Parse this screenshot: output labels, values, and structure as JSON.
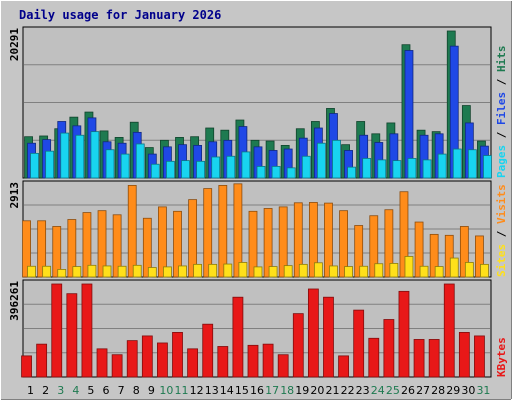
{
  "chart_data": [
    {
      "type": "bar",
      "title": "Daily usage for January 2026",
      "categories": [
        "1",
        "2",
        "3",
        "4",
        "5",
        "6",
        "7",
        "8",
        "9",
        "10",
        "11",
        "12",
        "13",
        "14",
        "15",
        "16",
        "17",
        "18",
        "19",
        "20",
        "21",
        "22",
        "23",
        "24",
        "25",
        "26",
        "27",
        "28",
        "29",
        "30",
        "31"
      ],
      "weekend_days": [
        "3",
        "4",
        "10",
        "11",
        "17",
        "18",
        "24",
        "25",
        "31"
      ],
      "y_max_label": "20291",
      "ylim": [
        0,
        20291
      ],
      "side_label": [
        "Pages",
        "Files",
        "Hits"
      ],
      "series": [
        {
          "name": "Hits",
          "color": "#1e7a50",
          "values": [
            5700,
            5800,
            6800,
            8400,
            9100,
            6500,
            5600,
            7700,
            4200,
            5200,
            5600,
            5700,
            6900,
            6600,
            8000,
            5200,
            5100,
            4500,
            6800,
            7800,
            9600,
            4600,
            7800,
            6100,
            7600,
            18400,
            6600,
            6400,
            20291,
            10000,
            5100
          ]
        },
        {
          "name": "Files",
          "color": "#1f48e6",
          "values": [
            4800,
            5300,
            7800,
            7200,
            8300,
            5000,
            4800,
            6300,
            3300,
            4300,
            4600,
            4500,
            5000,
            5200,
            7100,
            4300,
            3800,
            4000,
            5500,
            6900,
            8900,
            3800,
            5900,
            4900,
            6100,
            17600,
            5900,
            6100,
            18200,
            7600,
            4400
          ]
        },
        {
          "name": "Pages",
          "color": "#18d4f0",
          "values": [
            3400,
            3700,
            6200,
            5900,
            6400,
            3900,
            3300,
            4700,
            1900,
            2300,
            2400,
            2300,
            2900,
            3000,
            3600,
            1600,
            1600,
            1400,
            3000,
            4800,
            5200,
            1500,
            2700,
            2500,
            2400,
            2700,
            2500,
            3300,
            4000,
            3900,
            3100
          ]
        }
      ]
    },
    {
      "type": "bar",
      "categories": [
        "1",
        "2",
        "3",
        "4",
        "5",
        "6",
        "7",
        "8",
        "9",
        "10",
        "11",
        "12",
        "13",
        "14",
        "15",
        "16",
        "17",
        "18",
        "19",
        "20",
        "21",
        "22",
        "23",
        "24",
        "25",
        "26",
        "27",
        "28",
        "29",
        "30",
        "31"
      ],
      "y_max_label": "2913",
      "ylim": [
        0,
        2913
      ],
      "side_label": [
        "Sites",
        "Visits"
      ],
      "series": [
        {
          "name": "Visits",
          "color": "#ff8c1a",
          "values": [
            1780,
            1780,
            1600,
            1820,
            2040,
            2100,
            1970,
            2900,
            1860,
            2220,
            2080,
            2450,
            2800,
            2900,
            2950,
            2080,
            2170,
            2220,
            2350,
            2360,
            2340,
            2100,
            1630,
            1940,
            2130,
            2700,
            1740,
            1350,
            1320,
            1600,
            1300
          ]
        },
        {
          "name": "Sites",
          "color": "#ffe01a",
          "values": [
            340,
            340,
            240,
            330,
            370,
            350,
            340,
            370,
            300,
            320,
            350,
            400,
            400,
            410,
            460,
            320,
            330,
            360,
            400,
            450,
            350,
            330,
            340,
            420,
            430,
            650,
            340,
            330,
            600,
            460,
            400
          ]
        }
      ]
    },
    {
      "type": "bar",
      "categories": [
        "1",
        "2",
        "3",
        "4",
        "5",
        "6",
        "7",
        "8",
        "9",
        "10",
        "11",
        "12",
        "13",
        "14",
        "15",
        "16",
        "17",
        "18",
        "19",
        "20",
        "21",
        "22",
        "23",
        "24",
        "25",
        "26",
        "27",
        "28",
        "29",
        "30",
        "31"
      ],
      "y_max_label": "396261",
      "ylim": [
        0,
        396261
      ],
      "side_label": [
        "KBytes"
      ],
      "series": [
        {
          "name": "KBytes",
          "color": "#e81818",
          "values": [
            90000,
            140000,
            396261,
            355000,
            396261,
            120000,
            95000,
            155000,
            175000,
            145000,
            190000,
            120000,
            225000,
            130000,
            340000,
            135000,
            140000,
            95000,
            270000,
            375000,
            340000,
            90000,
            285000,
            165000,
            245000,
            365000,
            160000,
            160000,
            396261,
            190000,
            175000
          ]
        }
      ]
    }
  ]
}
